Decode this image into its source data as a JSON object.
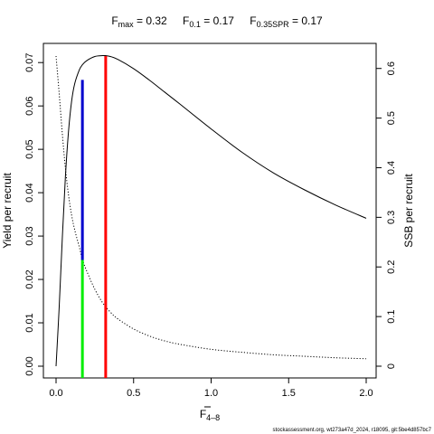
{
  "chart_data": {
    "type": "line",
    "title_parts": {
      "fmax_main": "F",
      "fmax_sub": "max",
      "fmax_value": " = 0.32",
      "f01_main": "F",
      "f01_sub": "0.1",
      "f01_value": " = 0.17",
      "fspr_main": "F",
      "fspr_sub": "0.35SPR",
      "fspr_value": " = 0.17"
    },
    "xlabel_main": "F",
    "xlabel_sub": "4–8",
    "ylabel_left": "Yield per recruit",
    "ylabel_right": "SSB per recruit",
    "footer": "stockassessment.org, wt273a47d_2024, r18095, git:5be4d857bc7",
    "xlim": [
      0,
      2
    ],
    "ylim_left": [
      0,
      0.0715
    ],
    "ylim_right": [
      0,
      0.625
    ],
    "x_ticks": [
      "0.0",
      "0.5",
      "1.0",
      "1.5",
      "2.0"
    ],
    "y_left_ticks": [
      "0.00",
      "0.01",
      "0.02",
      "0.03",
      "0.04",
      "0.05",
      "0.06",
      "0.07"
    ],
    "y_right_ticks": [
      "0",
      "0.1",
      "0.2",
      "0.3",
      "0.4",
      "0.5",
      "0.6"
    ],
    "series": [
      {
        "role": "yield",
        "axis": "left",
        "style": "solid",
        "x": [
          0,
          0.02,
          0.04,
          0.06,
          0.08,
          0.1,
          0.12,
          0.15,
          0.17,
          0.2,
          0.25,
          0.3,
          0.32,
          0.35,
          0.4,
          0.5,
          0.6,
          0.7,
          0.8,
          1.0,
          1.2,
          1.4,
          1.6,
          1.8,
          2.0
        ],
        "y": [
          0,
          0.0135,
          0.0293,
          0.0435,
          0.054,
          0.061,
          0.0651,
          0.0683,
          0.0695,
          0.0705,
          0.0714,
          0.0716,
          0.0716,
          0.0714,
          0.0707,
          0.0686,
          0.066,
          0.0632,
          0.0604,
          0.0547,
          0.0493,
          0.0446,
          0.0407,
          0.0372,
          0.0341
        ]
      },
      {
        "role": "ssb",
        "axis": "right",
        "style": "dotted",
        "x": [
          0,
          0.02,
          0.04,
          0.06,
          0.08,
          0.1,
          0.12,
          0.15,
          0.17,
          0.2,
          0.25,
          0.3,
          0.35,
          0.4,
          0.5,
          0.6,
          0.7,
          0.8,
          1.0,
          1.2,
          1.4,
          1.6,
          1.8,
          2.0
        ],
        "y": [
          0.625,
          0.55,
          0.47,
          0.4,
          0.346,
          0.305,
          0.275,
          0.24,
          0.215,
          0.19,
          0.155,
          0.128,
          0.109,
          0.095,
          0.075,
          0.061,
          0.051,
          0.044,
          0.034,
          0.028,
          0.023,
          0.02,
          0.017,
          0.015
        ]
      }
    ],
    "reference_lines": [
      {
        "name": "Fmax",
        "x": 0.32,
        "axis": "left",
        "y_from": 0,
        "y_to": 0.0715,
        "color": "#ff0000"
      },
      {
        "name": "F0.1",
        "x": 0.17,
        "axis": "left",
        "y_from": 0.0245,
        "y_to": 0.066,
        "color": "#0000cd"
      },
      {
        "name": "F0.35SPR",
        "x": 0.17,
        "axis": "left",
        "y_from": 0,
        "y_to": 0.0245,
        "color": "#00ee00"
      }
    ]
  }
}
